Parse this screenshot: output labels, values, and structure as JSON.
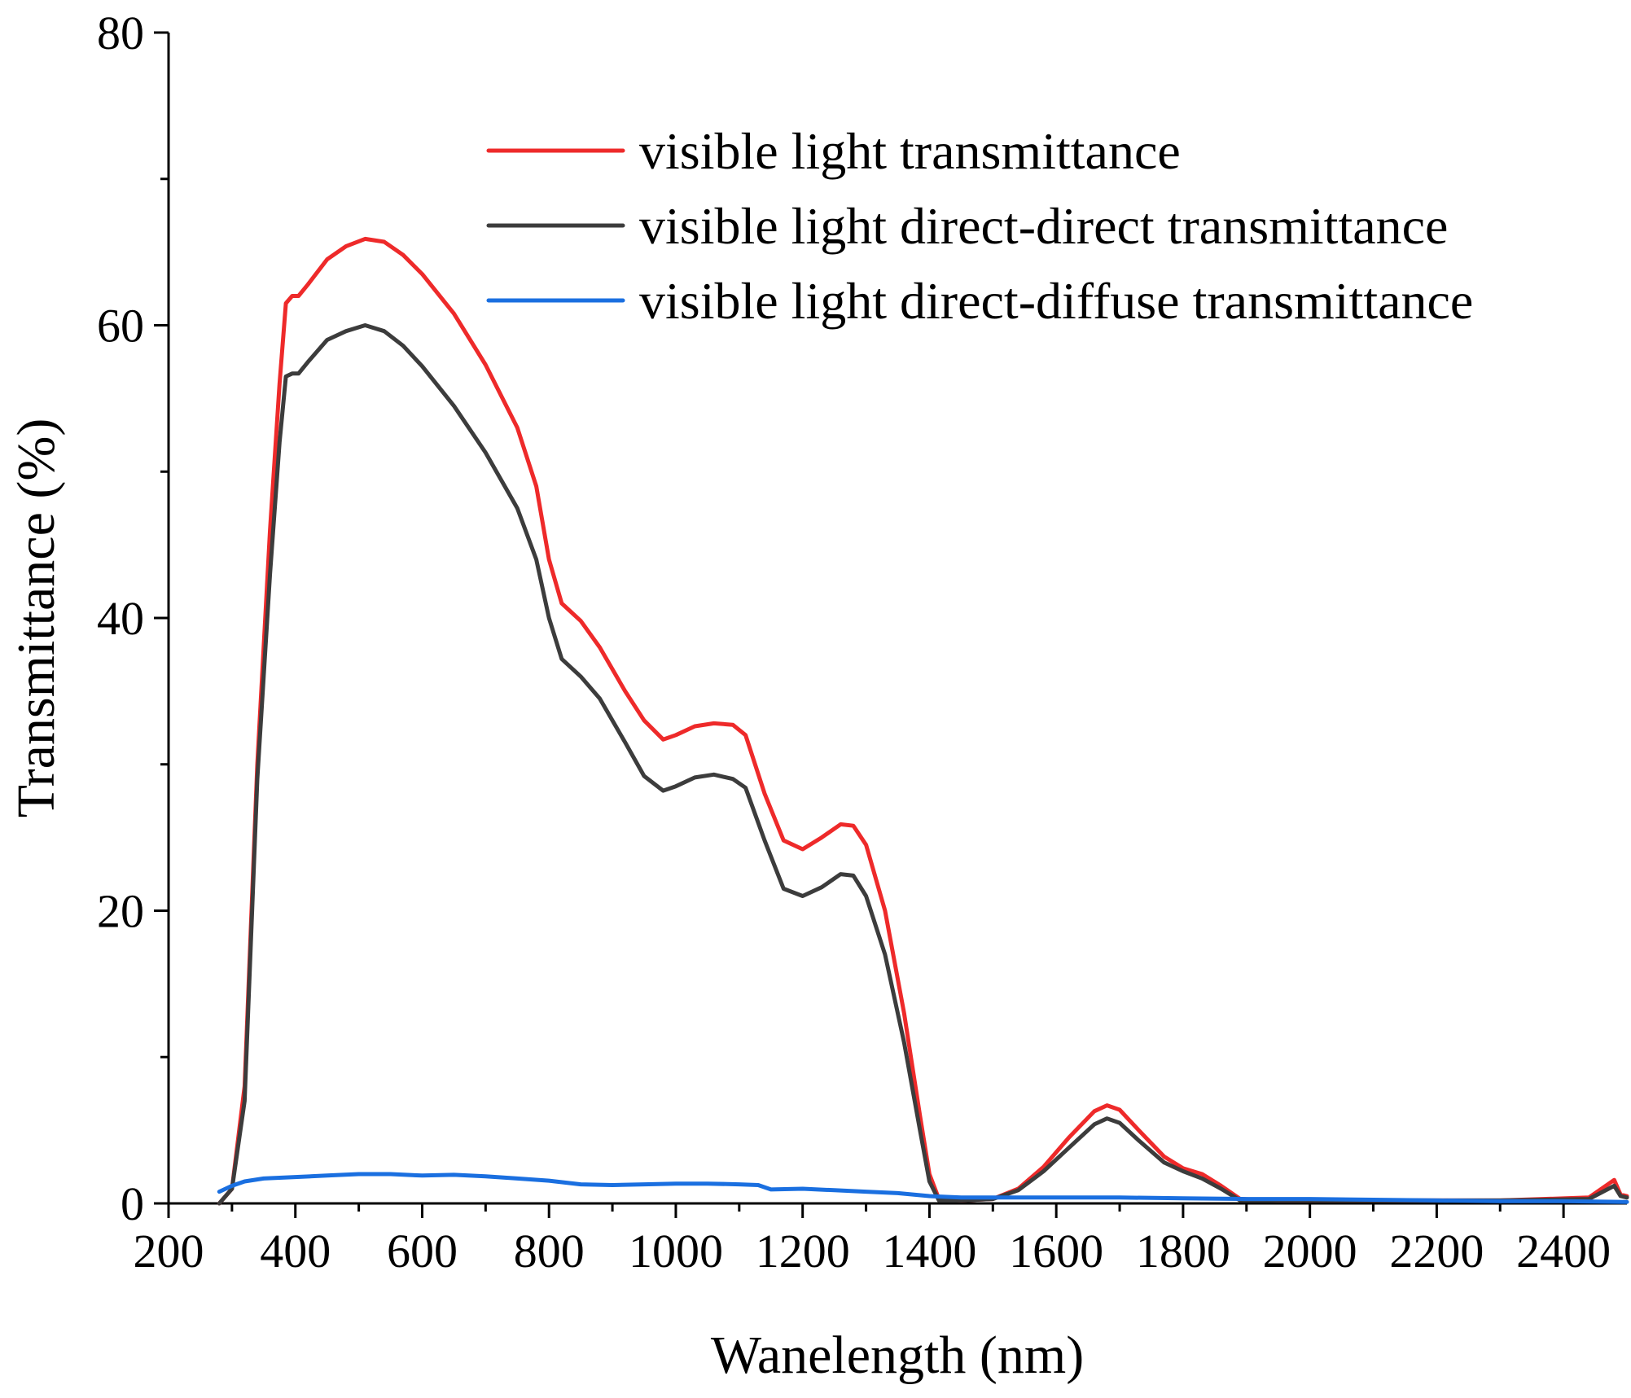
{
  "chart_data": {
    "type": "line",
    "title": "",
    "xlabel": "Wanelength (nm)",
    "ylabel": "Transmittance (%)",
    "xlim": [
      200,
      2500
    ],
    "ylim": [
      0,
      80
    ],
    "xticks": [
      200,
      400,
      600,
      800,
      1000,
      1200,
      1400,
      1600,
      1800,
      2000,
      2200,
      2400
    ],
    "yticks": [
      0,
      20,
      40,
      60,
      80
    ],
    "grid": false,
    "legend": "top-right",
    "series": [
      {
        "name": "visible light transmittance",
        "color": "#ee2a2a",
        "points": [
          [
            280,
            0
          ],
          [
            300,
            1
          ],
          [
            320,
            8
          ],
          [
            340,
            30
          ],
          [
            360,
            46
          ],
          [
            375,
            56
          ],
          [
            385,
            61.5
          ],
          [
            395,
            62
          ],
          [
            405,
            62
          ],
          [
            420,
            62.8
          ],
          [
            450,
            64.5
          ],
          [
            480,
            65.4
          ],
          [
            510,
            65.9
          ],
          [
            540,
            65.7
          ],
          [
            570,
            64.8
          ],
          [
            600,
            63.5
          ],
          [
            650,
            60.8
          ],
          [
            700,
            57.3
          ],
          [
            750,
            53
          ],
          [
            780,
            49
          ],
          [
            800,
            44
          ],
          [
            820,
            41
          ],
          [
            850,
            39.8
          ],
          [
            880,
            38
          ],
          [
            920,
            35
          ],
          [
            950,
            33
          ],
          [
            980,
            31.7
          ],
          [
            1000,
            32
          ],
          [
            1030,
            32.6
          ],
          [
            1060,
            32.8
          ],
          [
            1090,
            32.7
          ],
          [
            1110,
            32
          ],
          [
            1140,
            28
          ],
          [
            1170,
            24.8
          ],
          [
            1200,
            24.2
          ],
          [
            1230,
            25
          ],
          [
            1260,
            25.9
          ],
          [
            1280,
            25.8
          ],
          [
            1300,
            24.5
          ],
          [
            1330,
            20
          ],
          [
            1360,
            13
          ],
          [
            1385,
            6
          ],
          [
            1400,
            2
          ],
          [
            1415,
            0.3
          ],
          [
            1450,
            0.2
          ],
          [
            1500,
            0.3
          ],
          [
            1540,
            1
          ],
          [
            1580,
            2.5
          ],
          [
            1620,
            4.5
          ],
          [
            1660,
            6.3
          ],
          [
            1680,
            6.7
          ],
          [
            1700,
            6.4
          ],
          [
            1730,
            5
          ],
          [
            1770,
            3.2
          ],
          [
            1800,
            2.4
          ],
          [
            1830,
            2
          ],
          [
            1860,
            1.2
          ],
          [
            1890,
            0.3
          ],
          [
            1950,
            0.2
          ],
          [
            2100,
            0.2
          ],
          [
            2300,
            0.2
          ],
          [
            2440,
            0.4
          ],
          [
            2480,
            1.6
          ],
          [
            2490,
            0.6
          ],
          [
            2500,
            0.5
          ]
        ]
      },
      {
        "name": "visible light direct-direct transmittance",
        "color": "#3c3c3c",
        "points": [
          [
            280,
            0
          ],
          [
            300,
            1
          ],
          [
            320,
            7
          ],
          [
            340,
            29
          ],
          [
            360,
            43
          ],
          [
            375,
            52
          ],
          [
            385,
            56.5
          ],
          [
            395,
            56.7
          ],
          [
            405,
            56.7
          ],
          [
            420,
            57.5
          ],
          [
            450,
            59
          ],
          [
            480,
            59.6
          ],
          [
            510,
            60
          ],
          [
            540,
            59.6
          ],
          [
            570,
            58.6
          ],
          [
            600,
            57.2
          ],
          [
            650,
            54.5
          ],
          [
            700,
            51.3
          ],
          [
            750,
            47.5
          ],
          [
            780,
            44
          ],
          [
            800,
            40
          ],
          [
            820,
            37.2
          ],
          [
            850,
            36
          ],
          [
            880,
            34.5
          ],
          [
            920,
            31.5
          ],
          [
            950,
            29.2
          ],
          [
            980,
            28.2
          ],
          [
            1000,
            28.5
          ],
          [
            1030,
            29.1
          ],
          [
            1060,
            29.3
          ],
          [
            1090,
            29
          ],
          [
            1110,
            28.4
          ],
          [
            1140,
            24.8
          ],
          [
            1170,
            21.5
          ],
          [
            1200,
            21
          ],
          [
            1230,
            21.6
          ],
          [
            1260,
            22.5
          ],
          [
            1280,
            22.4
          ],
          [
            1300,
            21
          ],
          [
            1330,
            17
          ],
          [
            1360,
            11
          ],
          [
            1385,
            5
          ],
          [
            1400,
            1.5
          ],
          [
            1415,
            0.2
          ],
          [
            1450,
            0.2
          ],
          [
            1500,
            0.3
          ],
          [
            1540,
            0.9
          ],
          [
            1580,
            2.2
          ],
          [
            1620,
            3.8
          ],
          [
            1660,
            5.4
          ],
          [
            1680,
            5.8
          ],
          [
            1700,
            5.5
          ],
          [
            1730,
            4.3
          ],
          [
            1770,
            2.8
          ],
          [
            1800,
            2.2
          ],
          [
            1830,
            1.7
          ],
          [
            1860,
            1
          ],
          [
            1890,
            0.2
          ],
          [
            1950,
            0.2
          ],
          [
            2100,
            0.2
          ],
          [
            2300,
            0.2
          ],
          [
            2440,
            0.3
          ],
          [
            2480,
            1.2
          ],
          [
            2490,
            0.5
          ],
          [
            2500,
            0.4
          ]
        ]
      },
      {
        "name": "visible light direct-diffuse transmittance",
        "color": "#1a6fe0",
        "points": [
          [
            280,
            0.8
          ],
          [
            300,
            1.2
          ],
          [
            320,
            1.5
          ],
          [
            350,
            1.7
          ],
          [
            400,
            1.8
          ],
          [
            450,
            1.9
          ],
          [
            500,
            2
          ],
          [
            550,
            2
          ],
          [
            600,
            1.9
          ],
          [
            650,
            1.95
          ],
          [
            700,
            1.85
          ],
          [
            750,
            1.7
          ],
          [
            800,
            1.55
          ],
          [
            850,
            1.3
          ],
          [
            900,
            1.25
          ],
          [
            950,
            1.3
          ],
          [
            1000,
            1.35
          ],
          [
            1050,
            1.35
          ],
          [
            1100,
            1.3
          ],
          [
            1130,
            1.25
          ],
          [
            1150,
            0.95
          ],
          [
            1200,
            1
          ],
          [
            1250,
            0.9
          ],
          [
            1300,
            0.8
          ],
          [
            1350,
            0.7
          ],
          [
            1400,
            0.5
          ],
          [
            1450,
            0.4
          ],
          [
            1500,
            0.4
          ],
          [
            1600,
            0.4
          ],
          [
            1700,
            0.4
          ],
          [
            1800,
            0.35
          ],
          [
            1900,
            0.3
          ],
          [
            2000,
            0.3
          ],
          [
            2100,
            0.25
          ],
          [
            2200,
            0.2
          ],
          [
            2300,
            0.15
          ],
          [
            2400,
            0.15
          ],
          [
            2500,
            0.1
          ]
        ]
      }
    ]
  }
}
